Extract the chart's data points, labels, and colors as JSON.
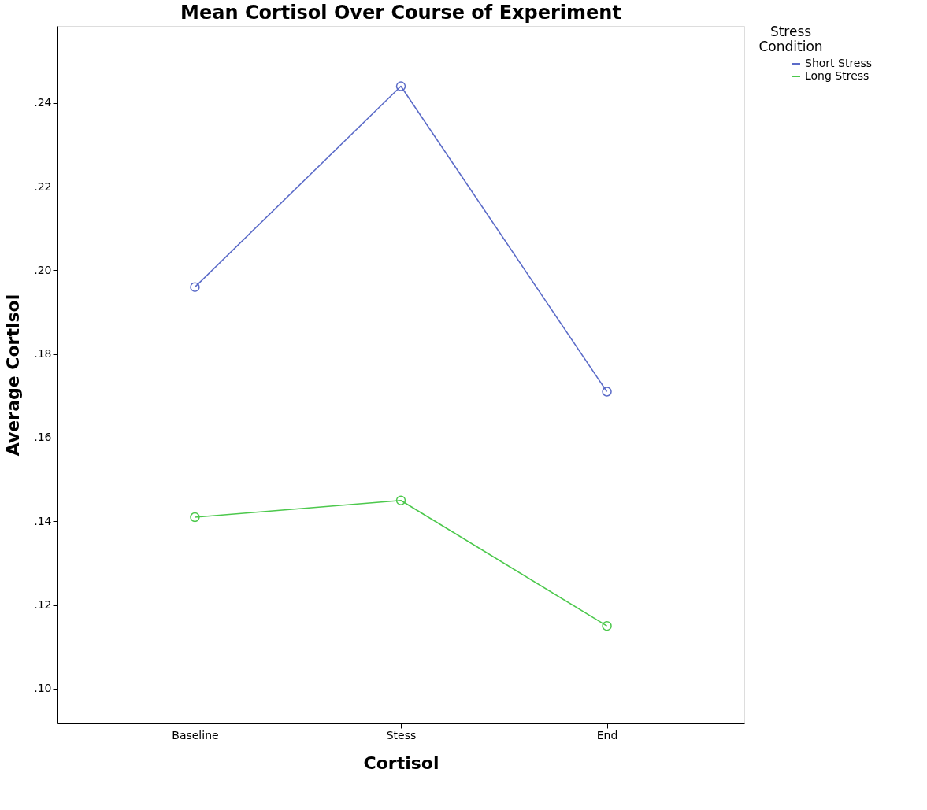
{
  "chart_data": {
    "type": "line",
    "title": "Mean Cortisol Over Course of Experiment",
    "xlabel": "Cortisol",
    "ylabel": "Average Cortisol",
    "legend_title": "Stress Condition",
    "categories": [
      "Baseline",
      "Stess",
      "End"
    ],
    "series": [
      {
        "name": "Short Stress",
        "color": "#5b6bc8",
        "values": [
          0.196,
          0.244,
          0.171
        ]
      },
      {
        "name": "Long Stress",
        "color": "#4cc84c",
        "values": [
          0.141,
          0.145,
          0.115
        ]
      }
    ],
    "ylim": [
      0.0917,
      0.2584
    ],
    "yticks": [
      {
        "value": 0.1,
        "label": ".10"
      },
      {
        "value": 0.12,
        "label": ".12"
      },
      {
        "value": 0.14,
        "label": ".14"
      },
      {
        "value": 0.16,
        "label": ".16"
      },
      {
        "value": 0.18,
        "label": ".18"
      },
      {
        "value": 0.2,
        "label": ".20"
      },
      {
        "value": 0.22,
        "label": ".22"
      },
      {
        "value": 0.24,
        "label": ".24"
      }
    ],
    "grid": false,
    "legend": "top right",
    "marker": "circle",
    "line_style": "solid"
  }
}
